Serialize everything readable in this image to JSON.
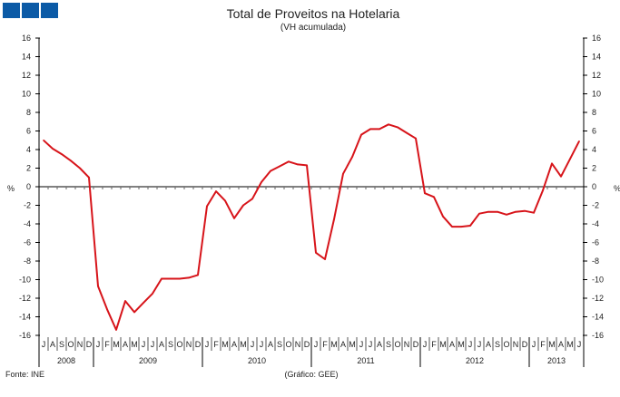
{
  "chart_data": {
    "type": "line",
    "title": "Total de Proveitos na Hotelaria",
    "subtitle": "(VH acumulada)",
    "ylabel": "%",
    "ylim": [
      -16,
      16
    ],
    "yticks": [
      16,
      14,
      12,
      10,
      8,
      6,
      4,
      2,
      0,
      -2,
      -4,
      -6,
      -8,
      -10,
      -12,
      -14,
      -16
    ],
    "month_labels": [
      "J",
      "A",
      "S",
      "O",
      "N",
      "D",
      "J",
      "F",
      "M",
      "A",
      "M",
      "J",
      "J",
      "A",
      "S",
      "O",
      "N",
      "D",
      "J",
      "F",
      "M",
      "A",
      "M",
      "J",
      "J",
      "A",
      "S",
      "O",
      "N",
      "D",
      "J",
      "F",
      "M",
      "A",
      "M",
      "J",
      "J",
      "A",
      "S",
      "O",
      "N",
      "D",
      "J",
      "F",
      "M",
      "A",
      "M",
      "J",
      "J",
      "A",
      "S",
      "O",
      "N",
      "D",
      "J",
      "F",
      "M",
      "A",
      "M",
      "J"
    ],
    "years": [
      {
        "label": "2008",
        "months": 6
      },
      {
        "label": "2009",
        "months": 12
      },
      {
        "label": "2010",
        "months": 12
      },
      {
        "label": "2011",
        "months": 12
      },
      {
        "label": "2012",
        "months": 12
      },
      {
        "label": "2013",
        "months": 6
      }
    ],
    "series": [
      {
        "name": "Total de Proveitos",
        "color": "#d7141a",
        "values": [
          5.0,
          4.1,
          3.5,
          2.8,
          2.0,
          1.0,
          -10.7,
          -13.2,
          -15.4,
          -12.3,
          -13.5,
          -12.5,
          -11.5,
          -9.9,
          -9.9,
          -9.9,
          -9.8,
          -9.5,
          -2.1,
          -0.5,
          -1.5,
          -3.4,
          -2.0,
          -1.3,
          0.5,
          1.7,
          2.2,
          2.7,
          2.4,
          2.3,
          -7.1,
          -7.8,
          -3.5,
          1.4,
          3.2,
          5.6,
          6.2,
          6.2,
          6.7,
          6.4,
          5.8,
          5.2,
          -0.7,
          -1.1,
          -3.2,
          -4.3,
          -4.3,
          -4.2,
          -2.9,
          -2.7,
          -2.7,
          -3.0,
          -2.7,
          -2.6,
          -2.8,
          -0.4,
          2.5,
          1.1,
          3.0,
          4.9
        ]
      }
    ],
    "grid": false
  },
  "footer": {
    "source": "Fonte: INE",
    "credit": "(Gráfico: GEE)"
  }
}
